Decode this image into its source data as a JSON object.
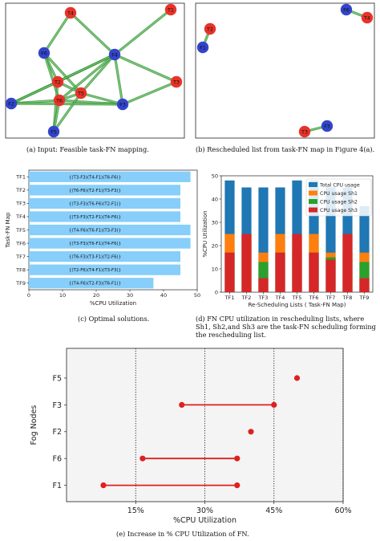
{
  "figures": {
    "a": {
      "caption": "(a) Input: Feasible task-FN mapping.",
      "nodes": [
        {
          "label": "T4",
          "kind": "task"
        },
        {
          "label": "T1",
          "kind": "task"
        },
        {
          "label": "F6",
          "kind": "fog"
        },
        {
          "label": "F4",
          "kind": "fog"
        },
        {
          "label": "T2",
          "kind": "task"
        },
        {
          "label": "T3",
          "kind": "task"
        },
        {
          "label": "T5",
          "kind": "task"
        },
        {
          "label": "T6",
          "kind": "task"
        },
        {
          "label": "F2",
          "kind": "fog"
        },
        {
          "label": "F3",
          "kind": "fog"
        },
        {
          "label": "F5",
          "kind": "fog"
        }
      ],
      "edges": [
        [
          "T4",
          "F6"
        ],
        [
          "T4",
          "F4"
        ],
        [
          "T1",
          "F4"
        ],
        [
          "F6",
          "T2"
        ],
        [
          "F6",
          "T6"
        ],
        [
          "F6",
          "T5"
        ],
        [
          "F4",
          "T2"
        ],
        [
          "F4",
          "T5"
        ],
        [
          "F4",
          "T3"
        ],
        [
          "F4",
          "F3"
        ],
        [
          "F4",
          "F2"
        ],
        [
          "F4",
          "T6"
        ],
        [
          "T2",
          "T5"
        ],
        [
          "T2",
          "F5"
        ],
        [
          "T2",
          "F2"
        ],
        [
          "T6",
          "T5"
        ],
        [
          "T6",
          "F3"
        ],
        [
          "T6",
          "F5"
        ],
        [
          "T6",
          "F2"
        ],
        [
          "T5",
          "F3"
        ],
        [
          "T5",
          "F5"
        ],
        [
          "T3",
          "F3"
        ],
        [
          "F2",
          "F3"
        ]
      ]
    },
    "b": {
      "caption": "(b) Rescheduled list from task-FN map in Figure 4(a).",
      "nodes": [
        {
          "label": "F6",
          "kind": "fog"
        },
        {
          "label": "T4",
          "kind": "task"
        },
        {
          "label": "T2",
          "kind": "task"
        },
        {
          "label": "F1",
          "kind": "fog"
        },
        {
          "label": "F3",
          "kind": "fog"
        },
        {
          "label": "T3",
          "kind": "task"
        }
      ],
      "edges": [
        [
          "F6",
          "T4"
        ],
        [
          "T2",
          "F1"
        ],
        [
          "F3",
          "T3"
        ]
      ]
    },
    "c": {
      "caption": "(c) Optimal solutions.",
      "chart_data": {
        "type": "bar",
        "orientation": "horizontal",
        "xlabel": "%CPU Utilization",
        "ylabel": "Task-FN Map",
        "xlim": [
          0,
          50
        ],
        "xticks": [
          "0",
          "10",
          "20",
          "30",
          "40",
          "50"
        ],
        "color": "#87cefa",
        "categories": [
          "TF1",
          "TF2",
          "TF3",
          "TF4",
          "TF5",
          "TF6",
          "TF7",
          "TF8",
          "TF9"
        ],
        "values": [
          48,
          45,
          45,
          45,
          48,
          48,
          45,
          45,
          37
        ],
        "labels": [
          "{(T3-F3)(T4-F1)(T6-F6)}",
          "{(T6-F6)(T2-F1)(T3-F3)}",
          "{(T3-F3)(T6-F6)(T2-F1)}",
          "{(T3-F3)(T2-F1)(T4-F6)}",
          "{(T4-F6)(T6-F1)(T3-F3)}",
          "{(T3-F3)(T6-F1)(T4-F6)}",
          "{(T6-F3)(T3-F1)(T2-F6)}",
          "{(T2-F6)(T4-F1)(T3-F3)}",
          "{(T4-F6)(T2-F3)(T6-F1)}"
        ]
      }
    },
    "d": {
      "caption": "(d) FN CPU utilization in rescheduling lists, where Sh1, Sh2,and Sh3 are the task-FN scheduling forming the rescheduling list.",
      "chart_data": {
        "type": "bar",
        "mode": "overlay",
        "xlabel": "Re-Scheduling Lists ( Task-FN Map)",
        "ylabel": "%CPU Utilization",
        "ylim": [
          0,
          50
        ],
        "yticks": [
          "0",
          "10",
          "20",
          "30",
          "40",
          "50"
        ],
        "categories": [
          "TF1",
          "TF2",
          "TF3",
          "TF4",
          "TF5",
          "TF6",
          "TF7",
          "TF8",
          "TF9"
        ],
        "legend_position": "top-right",
        "series": [
          {
            "name": "Total CPU usage",
            "color": "#1f77b4",
            "values": [
              48,
              45,
              45,
              45,
              48,
              48,
              45,
              45,
              37
            ]
          },
          {
            "name": "CPU usage Sh1",
            "color": "#ff7f0e",
            "values": [
              25,
              25,
              17,
              25,
              25,
              25,
              17,
              25,
              17
            ]
          },
          {
            "name": "CPU usage Sh2",
            "color": "#2ca02c",
            "values": [
              17,
              25,
              13,
              17,
              17,
              17,
              15,
              17,
              13
            ]
          },
          {
            "name": "CPU usage Sh3",
            "color": "#d62728",
            "values": [
              17,
              25,
              6,
              17,
              25,
              17,
              14,
              25,
              6
            ]
          }
        ]
      }
    },
    "e": {
      "caption": "(e) Increase in % CPU Utilization of FN.",
      "chart_data": {
        "type": "dumbbell",
        "xlabel": "%CPU Utilization",
        "ylabel": "Fog Nodes",
        "xlim": [
          0,
          60
        ],
        "xticks": [
          "15%",
          "30%",
          "45%",
          "60%"
        ],
        "xtick_values": [
          15,
          30,
          45,
          60
        ],
        "grid": "vertical dotted",
        "color": "#e02020",
        "categories": [
          "F5",
          "F3",
          "F2",
          "F6",
          "F1"
        ],
        "ranges": [
          [
            50,
            50
          ],
          [
            25,
            45
          ],
          [
            40,
            40
          ],
          [
            16.5,
            37
          ],
          [
            8,
            37
          ]
        ]
      }
    }
  }
}
